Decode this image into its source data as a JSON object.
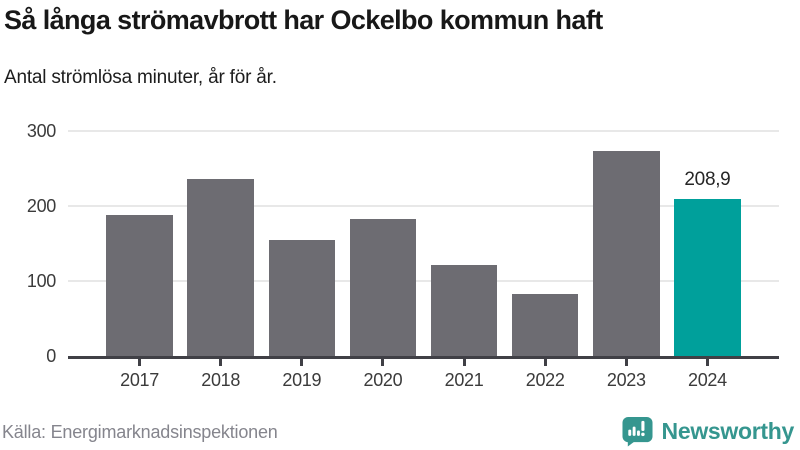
{
  "header": {
    "title": "Så långa strömavbrott har Ockelbo kommun haft",
    "subtitle": "Antal strömlösa minuter, år för år."
  },
  "chart_data": {
    "type": "bar",
    "title": "Så långa strömavbrott har Ockelbo kommun haft",
    "subtitle": "Antal strömlösa minuter, år för år.",
    "categories": [
      "2017",
      "2018",
      "2019",
      "2020",
      "2021",
      "2022",
      "2023",
      "2024"
    ],
    "values": [
      188,
      236,
      155,
      183,
      122,
      83,
      274,
      208.9
    ],
    "value_labels": [
      "",
      "",
      "",
      "",
      "",
      "",
      "",
      "208,9"
    ],
    "xlabel": "",
    "ylabel": "Antal strömlösa minuter",
    "ylim": [
      0,
      300
    ],
    "yticks": [
      0,
      100,
      200,
      300
    ],
    "grid": "horizontal",
    "legend": "none",
    "bar_color_default": "#6d6c72",
    "bar_color_highlight": "#00a09b",
    "highlight_index": 7
  },
  "footer": {
    "source": "Källa: Energimarknadsinspektionen",
    "brand": "Newsworthy"
  },
  "colors": {
    "bar_gray": "#6d6c72",
    "accent_teal": "#00a09b",
    "logo_teal": "#35968f",
    "gridline": "#e8e8e8",
    "axis": "#404046",
    "text_dark": "#181818",
    "text_muted": "#85858d"
  }
}
